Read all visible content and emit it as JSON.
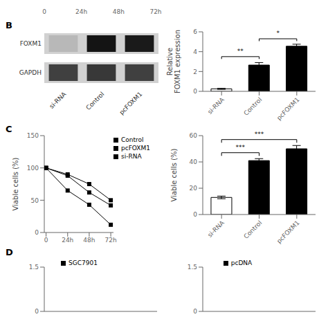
{
  "chart_data": [
    {
      "type": "axis",
      "xlim": [
        0,
        72
      ],
      "xticks": [
        {
          "value": 0,
          "label": "0"
        },
        {
          "value": 24,
          "label": "24h"
        },
        {
          "value": 48,
          "label": "48h"
        },
        {
          "value": 72,
          "label": "72h"
        }
      ],
      "tick_labels": "x"
    },
    {
      "type": "blot",
      "title": "B",
      "categories": [
        "si-RNA",
        "Control",
        "pcFOXM1"
      ],
      "color": "#d1d1d1",
      "series": [
        {
          "name": "FOXM1",
          "colors": [
            "#b8b8b8",
            "#141414",
            "#1a1a1a"
          ]
        },
        {
          "name": "GAPDH",
          "colors": [
            "#404040",
            "#383838",
            "#404040"
          ]
        }
      ]
    },
    {
      "type": "bar",
      "categories": [
        "si-RNA",
        "Control",
        "pcFOXM1"
      ],
      "values": [
        0.25,
        2.65,
        4.55
      ],
      "errors": [
        0.05,
        0.25,
        0.2
      ],
      "colors": [
        "white",
        "black",
        "black"
      ],
      "ylabel": "Relative\nFOXM1 expression",
      "ylim": [
        0,
        6
      ],
      "yticks": [
        0,
        2,
        4,
        6
      ],
      "annotations": [
        {
          "from": "si-RNA",
          "to": "Control",
          "y": 3.5,
          "label": "**"
        },
        {
          "from": "Control",
          "to": "pcFOXM1",
          "y": 5.3,
          "label": "*"
        }
      ]
    },
    {
      "type": "line",
      "title": "C",
      "x": [
        0,
        24,
        48,
        72
      ],
      "series": [
        {
          "name": "pcFOXM1",
          "color": "black",
          "marker": "square",
          "line_style": "solid",
          "values": [
            100,
            90,
            75,
            50
          ]
        },
        {
          "name": "Control",
          "color": "black",
          "marker": "square",
          "line_style": "solid",
          "values": [
            100,
            88,
            62,
            42
          ]
        },
        {
          "name": "si-RNA",
          "color": "black",
          "marker": "square",
          "line_style": "solid",
          "values": [
            100,
            65,
            43,
            12
          ]
        }
      ],
      "ylabel": "Viable cells (%)",
      "xlim": [
        -2,
        75
      ],
      "xticks": [
        {
          "value": 0,
          "label": "0"
        },
        {
          "value": 24,
          "label": "24h"
        },
        {
          "value": 48,
          "label": "48h"
        },
        {
          "value": 72,
          "label": "72h"
        }
      ],
      "ylim": [
        0,
        150
      ],
      "yticks": [
        0,
        50,
        100,
        150
      ],
      "legend": "upper right"
    },
    {
      "type": "bar",
      "categories": [
        "si-RNA",
        "Control",
        "pcFOXM1"
      ],
      "values": [
        13,
        41,
        50
      ],
      "errors": [
        1.0,
        1.5,
        2.5
      ],
      "colors": [
        "white",
        "black",
        "black"
      ],
      "ylabel": "Viable cells (%)",
      "ylim": [
        0,
        60
      ],
      "yticks": [
        0,
        20,
        40,
        60
      ],
      "annotations": [
        {
          "from": "si-RNA",
          "to": "Control",
          "y": 47,
          "label": "***"
        },
        {
          "from": "si-RNA",
          "to": "pcFOXM1",
          "y": 57,
          "label": "***"
        }
      ]
    },
    {
      "type": "line",
      "title": "D",
      "xlim": [
        -2,
        75
      ],
      "ylim": [
        0,
        1.5
      ],
      "yticks": [
        0,
        1.5
      ],
      "tick_labels": "y",
      "series": [
        {
          "name": "SGC7901",
          "color": "black",
          "marker": "square",
          "line_style": "solid",
          "values": []
        }
      ],
      "legend": "top"
    },
    {
      "type": "line",
      "xlim": [
        0,
        1
      ],
      "ylim": [
        0,
        1.5
      ],
      "yticks": [
        0,
        1.5
      ],
      "tick_labels": "y",
      "series": [
        {
          "name": "pcDNA",
          "color": "black",
          "marker": "square",
          "line_style": "solid",
          "values": []
        }
      ],
      "legend": "top"
    }
  ]
}
